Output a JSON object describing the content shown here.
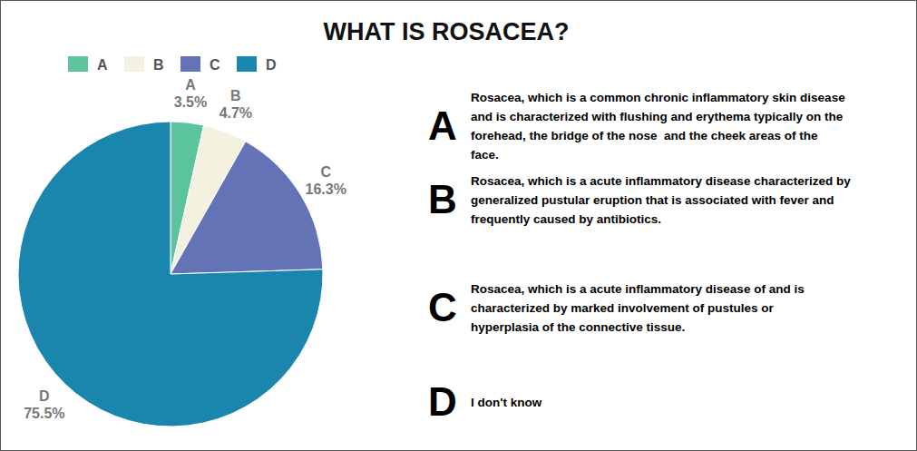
{
  "chart_data": {
    "type": "pie",
    "title": "WHAT IS ROSACEA?",
    "categories": [
      "A",
      "B",
      "C",
      "D"
    ],
    "values": [
      3.5,
      4.7,
      16.3,
      75.5
    ],
    "value_labels": [
      "3.5%",
      "4.7%",
      "16.3%",
      "75.5%"
    ],
    "colors": [
      "#5cc49c",
      "#f4f1e1",
      "#6473b5",
      "#1a86ad"
    ],
    "data_labels": true,
    "legend": "top-left",
    "annotations": [
      [
        "Rosacea, which is a common chronic inflammatory skin disease",
        "and is characterized with flushing and erythema typically on the",
        "forehead, the bridge of the nose  and the cheek areas of the",
        "face."
      ],
      [
        "Rosacea, which is a acute inflammatory disease characterized by",
        "generalized pustular eruption that is associated with fever and",
        "frequently caused by antibiotics."
      ],
      [
        "Rosacea, which is a acute inflammatory disease of and is",
        "characterized by marked involvement of pustules or",
        "hyperplasia of the connective tissue."
      ],
      [
        "I don't know"
      ]
    ]
  }
}
